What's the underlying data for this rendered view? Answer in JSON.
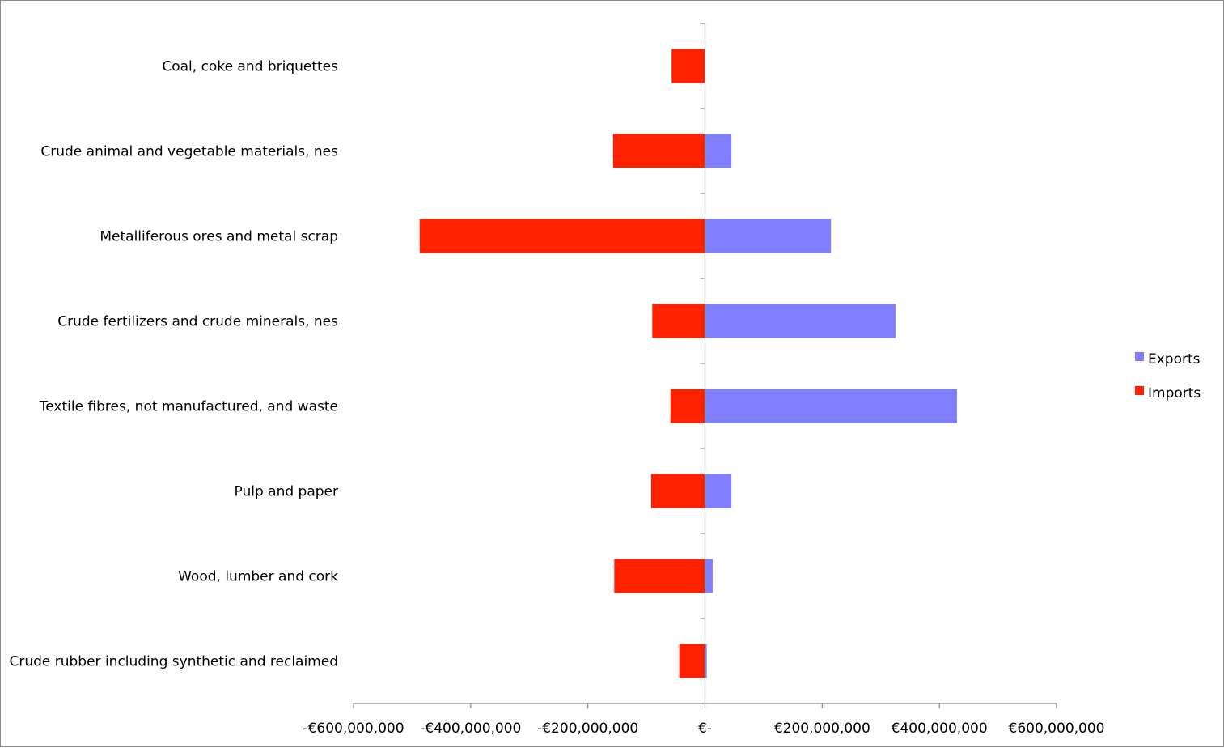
{
  "chart_data": {
    "type": "bar",
    "orientation": "horizontal",
    "stacked": false,
    "categories": [
      "Coal, coke and briquettes",
      "Crude animal and vegetable materials, nes",
      "Metalliferous ores and metal scrap",
      "Crude fertilizers and crude minerals, nes",
      "Textile fibres, not manufactured, and waste",
      "Pulp and paper",
      "Wood, lumber and cork",
      "Crude rubber including synthetic and reclaimed"
    ],
    "series": [
      {
        "name": "Exports",
        "color": "#7f7fff",
        "values": [
          0,
          45000000,
          215000000,
          325000000,
          430000000,
          45000000,
          13000000,
          3000000
        ]
      },
      {
        "name": "Imports",
        "color": "#ff2200",
        "values": [
          -57000000,
          -157000000,
          -487000000,
          -90000000,
          -59000000,
          -92000000,
          -155000000,
          -44000000
        ]
      }
    ],
    "xlim": [
      -600000000,
      600000000
    ],
    "xticks": [
      -600000000,
      -400000000,
      -200000000,
      0,
      200000000,
      400000000,
      600000000
    ],
    "xtick_labels": [
      "-€600,000,000",
      "-€400,000,000",
      "-€200,000,000",
      "€-",
      "€200,000,000",
      "€400,000,000",
      "€600,000,000"
    ],
    "title": "",
    "xlabel": "",
    "ylabel": "",
    "grid": false,
    "legend_position": "right"
  }
}
